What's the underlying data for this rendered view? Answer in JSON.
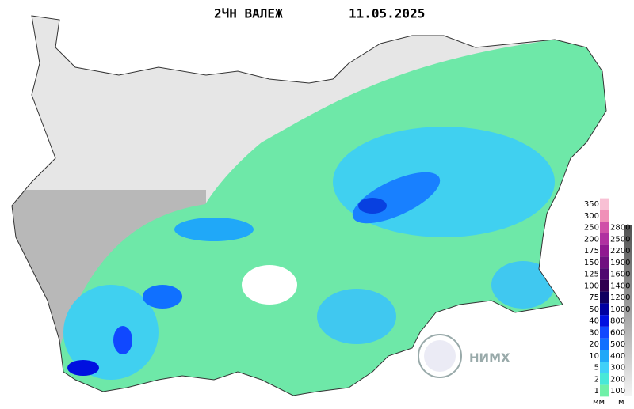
{
  "title": "2ЧН ВАЛЕЖ",
  "date": "11.05.2025",
  "logo_text": "НИМХ",
  "legend": {
    "precip_unit": "мм",
    "precip": [
      {
        "value": 350,
        "color": "#f8c0d4"
      },
      {
        "value": 300,
        "color": "#f090b8"
      },
      {
        "value": 250,
        "color": "#d050a8"
      },
      {
        "value": 200,
        "color": "#b030a0"
      },
      {
        "value": 175,
        "color": "#901890"
      },
      {
        "value": 150,
        "color": "#701080"
      },
      {
        "value": 125,
        "color": "#500870"
      },
      {
        "value": 100,
        "color": "#300050"
      },
      {
        "value": 75,
        "color": "#100060"
      },
      {
        "value": 50,
        "color": "#0000a0"
      },
      {
        "value": 40,
        "color": "#0010e0"
      },
      {
        "value": 30,
        "color": "#1048ff"
      },
      {
        "value": 20,
        "color": "#1070ff"
      },
      {
        "value": 10,
        "color": "#20a8f8"
      },
      {
        "value": 5,
        "color": "#40d0f8"
      },
      {
        "value": 2,
        "color": "#48e8d8"
      },
      {
        "value": 1,
        "color": "#70f0a8"
      }
    ],
    "elevation_unit": "м",
    "elevation": [
      2800,
      2500,
      2200,
      1900,
      1600,
      1400,
      1200,
      1000,
      800,
      600,
      500,
      400,
      300,
      200,
      100
    ]
  }
}
